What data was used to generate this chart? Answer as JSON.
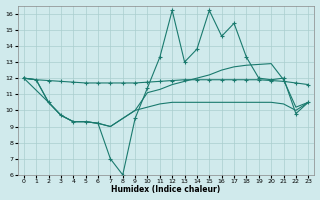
{
  "xlabel": "Humidex (Indice chaleur)",
  "background_color": "#d0eaec",
  "line_color": "#1a7a6e",
  "xlim": [
    -0.5,
    23.5
  ],
  "ylim": [
    6,
    16.5
  ],
  "yticks": [
    6,
    7,
    8,
    9,
    10,
    11,
    12,
    13,
    14,
    15,
    16
  ],
  "xticks": [
    0,
    1,
    2,
    3,
    4,
    5,
    6,
    7,
    8,
    9,
    10,
    11,
    12,
    13,
    14,
    15,
    16,
    17,
    18,
    19,
    20,
    21,
    22,
    23
  ],
  "line_flat_x": [
    0,
    1,
    2,
    3,
    4,
    5,
    6,
    7,
    8,
    9,
    10,
    11,
    12,
    13,
    14,
    15,
    16,
    17,
    18,
    19,
    20,
    21,
    22,
    23
  ],
  "line_flat_y": [
    12.0,
    11.9,
    11.85,
    11.8,
    11.75,
    11.7,
    11.7,
    11.7,
    11.7,
    11.7,
    11.75,
    11.8,
    11.85,
    11.9,
    11.9,
    11.9,
    11.9,
    11.9,
    11.9,
    11.9,
    11.85,
    11.8,
    11.7,
    11.6
  ],
  "line_mid_x": [
    0,
    1,
    2,
    3,
    4,
    5,
    6,
    7,
    8,
    9,
    10,
    11,
    12,
    13,
    14,
    15,
    16,
    17,
    18,
    19,
    20,
    21,
    22,
    23
  ],
  "line_mid_y": [
    12.0,
    11.9,
    10.5,
    9.7,
    9.3,
    9.3,
    9.2,
    9.0,
    9.5,
    10.0,
    11.1,
    11.3,
    11.6,
    11.8,
    12.0,
    12.2,
    12.5,
    12.7,
    12.8,
    12.85,
    12.9,
    11.9,
    10.2,
    10.5
  ],
  "line_bot_x": [
    0,
    1,
    2,
    3,
    4,
    5,
    6,
    7,
    8,
    9,
    10,
    11,
    12,
    13,
    14,
    15,
    16,
    17,
    18,
    19,
    20,
    21,
    22,
    23
  ],
  "line_bot_y": [
    12.0,
    11.9,
    10.5,
    9.7,
    9.3,
    9.3,
    9.2,
    9.0,
    9.5,
    10.0,
    10.2,
    10.4,
    10.5,
    10.5,
    10.5,
    10.5,
    10.5,
    10.5,
    10.5,
    10.5,
    10.5,
    10.4,
    10.0,
    10.5
  ],
  "line_jagged_x": [
    0,
    2,
    3,
    4,
    5,
    6,
    7,
    8,
    9,
    10,
    11,
    12,
    13,
    14,
    15,
    16,
    17,
    18,
    19,
    20,
    21,
    22,
    23
  ],
  "line_jagged_y": [
    12.0,
    10.5,
    9.7,
    9.3,
    9.3,
    9.2,
    7.0,
    6.0,
    9.5,
    11.4,
    13.3,
    16.2,
    13.0,
    13.8,
    16.2,
    14.6,
    15.4,
    13.3,
    12.0,
    11.9,
    12.0,
    9.8,
    10.5
  ],
  "grid_color": "#aacece",
  "marker": "+"
}
